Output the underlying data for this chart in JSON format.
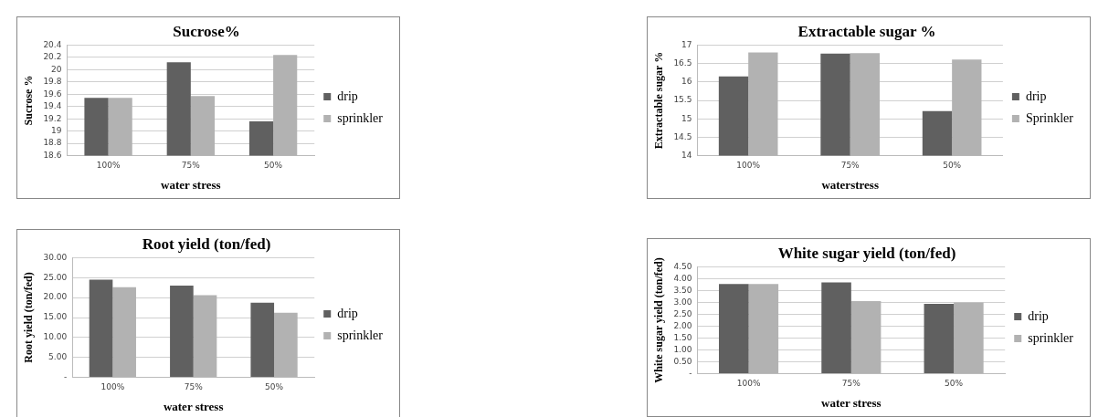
{
  "chart_data": [
    {
      "type": "bar",
      "title": "Sucrose%",
      "xlabel": "water stress",
      "ylabel": "Sucrose %",
      "categories": [
        "100%",
        "75%",
        "50%"
      ],
      "series": [
        {
          "name": "drip",
          "color": "#606060",
          "values": [
            19.54,
            20.12,
            19.16
          ]
        },
        {
          "name": "sprinkler",
          "color": "#b2b2b2",
          "values": [
            19.54,
            19.57,
            20.24
          ]
        }
      ],
      "ylim": [
        18.6,
        20.4
      ],
      "yticks": [
        18.6,
        18.8,
        19,
        19.2,
        19.4,
        19.6,
        19.8,
        20,
        20.2,
        20.4
      ],
      "grid": "y",
      "legend": "right"
    },
    {
      "type": "bar",
      "title": "Extractable sugar %",
      "xlabel": "waterstress",
      "ylabel": "Extractable sugar %",
      "categories": [
        "100%",
        "75%",
        "50%"
      ],
      "series": [
        {
          "name": "drip",
          "color": "#606060",
          "values": [
            16.15,
            16.77,
            15.21
          ]
        },
        {
          "name": "Sprinkler",
          "color": "#b2b2b2",
          "values": [
            16.8,
            16.78,
            16.61
          ]
        }
      ],
      "ylim": [
        14,
        17
      ],
      "yticks": [
        14,
        14.5,
        15,
        15.5,
        16,
        16.5,
        17
      ],
      "grid": "y",
      "legend": "right"
    },
    {
      "type": "bar",
      "title": "Root yield (ton/fed)",
      "xlabel": "water stress",
      "ylabel": "Root yield (ton/fed)",
      "categories": [
        "100%",
        "75%",
        "50%"
      ],
      "series": [
        {
          "name": "drip",
          "color": "#606060",
          "values": [
            24.5,
            23.0,
            18.7
          ]
        },
        {
          "name": "sprinkler",
          "color": "#b2b2b2",
          "values": [
            22.6,
            20.6,
            16.2
          ]
        }
      ],
      "ylim": [
        0,
        30
      ],
      "yticks": [
        {
          "value": 0,
          "label": "-"
        },
        {
          "value": 5,
          "label": "5.00"
        },
        {
          "value": 10,
          "label": "10.00"
        },
        {
          "value": 15,
          "label": "15.00"
        },
        {
          "value": 20,
          "label": "20.00"
        },
        {
          "value": 25,
          "label": "25.00"
        },
        {
          "value": 30,
          "label": "30.00"
        }
      ],
      "grid": "y",
      "legend": "right"
    },
    {
      "type": "bar",
      "title": "White sugar yield (ton/fed)",
      "xlabel": "water stress",
      "ylabel": "White sugar yield (ton/fed)",
      "categories": [
        "100%",
        "75%",
        "50%"
      ],
      "series": [
        {
          "name": "drip",
          "color": "#606060",
          "values": [
            3.78,
            3.84,
            2.94
          ]
        },
        {
          "name": "sprinkler",
          "color": "#b2b2b2",
          "values": [
            3.78,
            3.06,
            3.0
          ]
        }
      ],
      "ylim": [
        0,
        4.5
      ],
      "yticks": [
        {
          "value": 0,
          "label": "-"
        },
        {
          "value": 0.5,
          "label": "0.50"
        },
        {
          "value": 1,
          "label": "1.00"
        },
        {
          "value": 1.5,
          "label": "1.50"
        },
        {
          "value": 2,
          "label": "2.00"
        },
        {
          "value": 2.5,
          "label": "2.50"
        },
        {
          "value": 3,
          "label": "3.00"
        },
        {
          "value": 3.5,
          "label": "3.50"
        },
        {
          "value": 4,
          "label": "4.00"
        },
        {
          "value": 4.5,
          "label": "4.50"
        }
      ],
      "grid": "y",
      "legend": "right"
    }
  ]
}
